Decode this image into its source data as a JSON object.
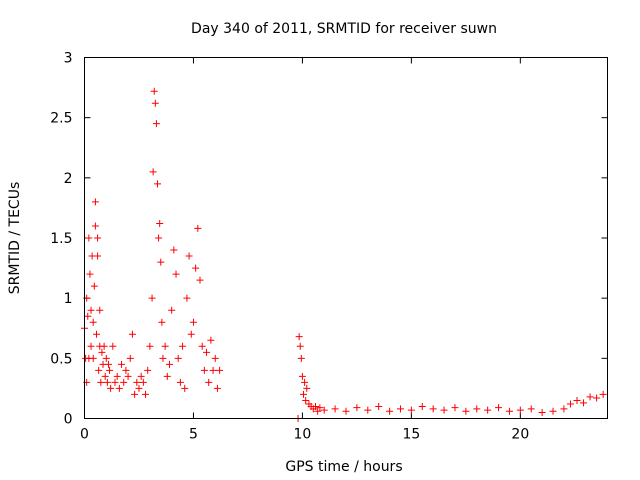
{
  "chart_data": {
    "type": "scatter",
    "title": "Day 340 of 2011, SRMTID for receiver suwn",
    "xlabel": "GPS time / hours",
    "ylabel": "SRMTID / TECUs",
    "xlim": [
      0,
      24
    ],
    "ylim": [
      0,
      3
    ],
    "xticks": [
      0,
      5,
      10,
      15,
      20
    ],
    "xtick_labels": [
      "0",
      "5",
      "10",
      "15",
      "20"
    ],
    "yticks": [
      0,
      0.5,
      1,
      1.5,
      2,
      2.5,
      3
    ],
    "ytick_labels": [
      "0",
      "0.5",
      "1",
      "1.5",
      "2",
      "2.5",
      "3"
    ],
    "marker": "+",
    "color": "#ff0000",
    "legend": "none",
    "grid": false,
    "series": [
      {
        "name": "SRMTID",
        "x": [
          0.0,
          0.05,
          0.1,
          0.1,
          0.15,
          0.2,
          0.2,
          0.25,
          0.3,
          0.3,
          0.35,
          0.4,
          0.4,
          0.45,
          0.5,
          0.5,
          0.55,
          0.6,
          0.6,
          0.65,
          0.7,
          0.7,
          0.75,
          0.8,
          0.85,
          0.9,
          0.95,
          1.0,
          1.05,
          1.1,
          1.15,
          1.2,
          1.3,
          1.4,
          1.5,
          1.6,
          1.7,
          1.8,
          1.9,
          2.0,
          2.1,
          2.2,
          2.3,
          2.4,
          2.5,
          2.6,
          2.7,
          2.8,
          2.9,
          3.0,
          3.1,
          3.15,
          3.2,
          3.25,
          3.3,
          3.35,
          3.4,
          3.45,
          3.5,
          3.55,
          3.6,
          3.7,
          3.8,
          3.9,
          4.0,
          4.1,
          4.2,
          4.3,
          4.4,
          4.5,
          4.6,
          4.7,
          4.8,
          4.9,
          5.0,
          5.1,
          5.2,
          5.3,
          5.4,
          5.5,
          5.6,
          5.7,
          5.8,
          5.9,
          6.0,
          6.1,
          6.2,
          9.8,
          9.85,
          9.9,
          9.95,
          10.0,
          10.05,
          10.1,
          10.15,
          10.2,
          10.3,
          10.4,
          10.5,
          10.6,
          10.7,
          10.8,
          11.0,
          11.5,
          12.0,
          12.5,
          13.0,
          13.5,
          14.0,
          14.5,
          15.0,
          15.5,
          16.0,
          16.5,
          17.0,
          17.5,
          18.0,
          18.5,
          19.0,
          19.5,
          20.0,
          20.5,
          21.0,
          21.5,
          22.0,
          22.3,
          22.6,
          22.9,
          23.2,
          23.5,
          23.8
        ],
        "y": [
          0.75,
          0.5,
          1.0,
          0.3,
          0.85,
          0.5,
          1.5,
          1.2,
          0.9,
          0.6,
          1.35,
          0.5,
          0.8,
          1.1,
          1.8,
          1.6,
          0.7,
          1.5,
          1.35,
          0.4,
          0.6,
          0.9,
          0.3,
          0.55,
          0.45,
          0.6,
          0.35,
          0.5,
          0.3,
          0.45,
          0.4,
          0.25,
          0.6,
          0.3,
          0.35,
          0.25,
          0.45,
          0.3,
          0.4,
          0.35,
          0.5,
          0.7,
          0.2,
          0.3,
          0.25,
          0.35,
          0.3,
          0.2,
          0.4,
          0.6,
          1.0,
          2.05,
          2.72,
          2.62,
          2.45,
          1.95,
          1.5,
          1.62,
          1.3,
          0.8,
          0.5,
          0.6,
          0.35,
          0.45,
          0.9,
          1.4,
          1.2,
          0.5,
          0.3,
          0.6,
          0.25,
          1.0,
          1.35,
          0.7,
          0.8,
          1.25,
          1.58,
          1.15,
          0.6,
          0.4,
          0.55,
          0.3,
          0.65,
          0.4,
          0.5,
          0.25,
          0.4,
          0.0,
          0.68,
          0.6,
          0.5,
          0.35,
          0.2,
          0.3,
          0.15,
          0.25,
          0.12,
          0.1,
          0.08,
          0.1,
          0.06,
          0.09,
          0.07,
          0.08,
          0.06,
          0.09,
          0.07,
          0.1,
          0.06,
          0.08,
          0.07,
          0.1,
          0.08,
          0.07,
          0.09,
          0.06,
          0.08,
          0.07,
          0.09,
          0.06,
          0.07,
          0.08,
          0.05,
          0.06,
          0.08,
          0.12,
          0.15,
          0.13,
          0.18,
          0.17,
          0.2
        ]
      }
    ]
  }
}
